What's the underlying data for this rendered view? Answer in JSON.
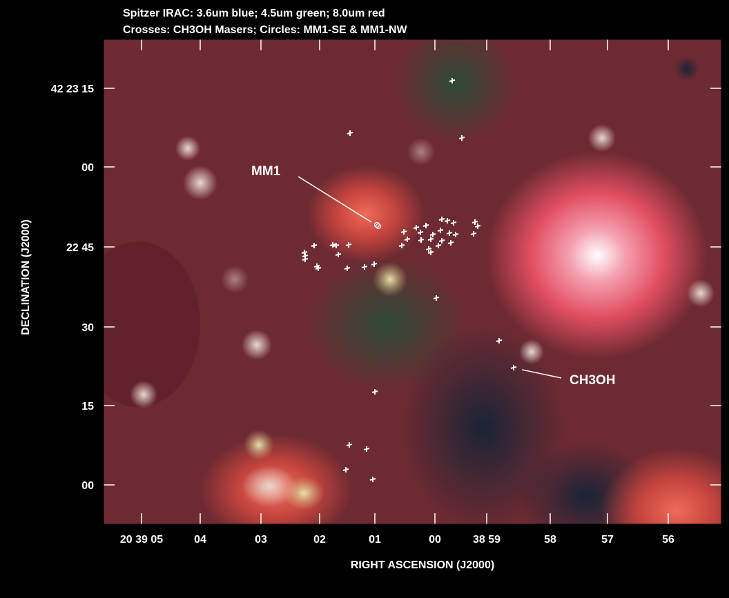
{
  "header": {
    "line1": "Spitzer IRAC: 3.6um blue; 4.5um green; 8.0um red",
    "line2": "Crosses: CH3OH Masers; Circles: MM1-SE & MM1-NW"
  },
  "axes": {
    "x_label": "RIGHT ASCENSION (J2000)",
    "y_label": "DECLINATION (J2000)",
    "x_ticks": [
      "20 39 05",
      "04",
      "03",
      "02",
      "01",
      "00",
      "38 59",
      "58",
      "57",
      "56"
    ],
    "y_ticks": [
      "42 23 15",
      "00",
      "22 45",
      "30",
      "15",
      "00"
    ]
  },
  "annotations": {
    "mm1": "MM1",
    "ch3oh": "CH3OH"
  }
}
